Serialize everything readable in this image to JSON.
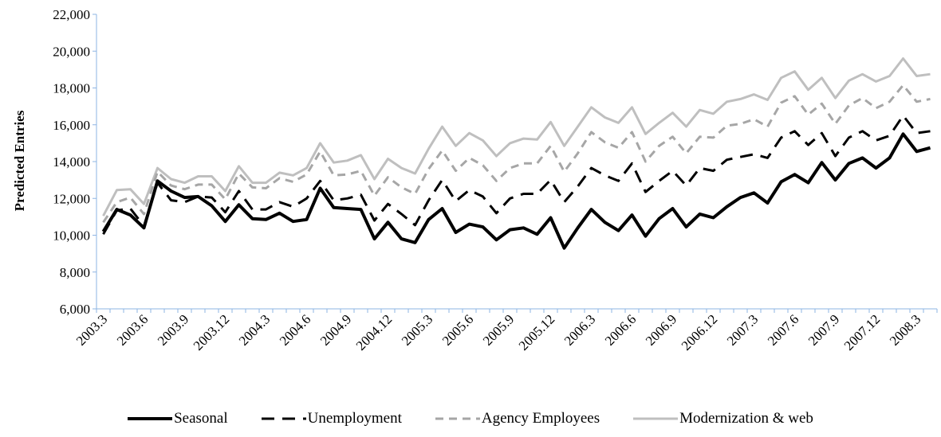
{
  "chart_data": {
    "type": "line",
    "title": "",
    "xlabel": "",
    "ylabel": "Predicted Entries",
    "ylim": [
      6000,
      22000
    ],
    "yticks": [
      6000,
      8000,
      10000,
      12000,
      14000,
      16000,
      18000,
      20000,
      22000
    ],
    "ytick_labels": [
      "6,000",
      "8,000",
      "10,000",
      "12,000",
      "14,000",
      "16,000",
      "18,000",
      "20,000",
      "22,000"
    ],
    "x": [
      "2003.3",
      "2003.4",
      "2003.5",
      "2003.6",
      "2003.7",
      "2003.8",
      "2003.9",
      "2003.10",
      "2003.11",
      "2003.12",
      "2004.1",
      "2004.2",
      "2004.3",
      "2004.4",
      "2004.5",
      "2004.6",
      "2004.7",
      "2004.8",
      "2004.9",
      "2004.10",
      "2004.11",
      "2004.12",
      "2005.1",
      "2005.2",
      "2005.3",
      "2005.4",
      "2005.5",
      "2005.6",
      "2005.7",
      "2005.8",
      "2005.9",
      "2005.10",
      "2005.11",
      "2005.12",
      "2006.1",
      "2006.2",
      "2006.3",
      "2006.4",
      "2006.5",
      "2006.6",
      "2006.7",
      "2006.8",
      "2006.9",
      "2006.10",
      "2006.11",
      "2006.12",
      "2007.1",
      "2007.2",
      "2007.3",
      "2007.4",
      "2007.5",
      "2007.6",
      "2007.7",
      "2007.8",
      "2007.9",
      "2007.10",
      "2007.11",
      "2007.12",
      "2008.1",
      "2008.2",
      "2008.3",
      "2008.4"
    ],
    "xtick_labels": [
      "2003.3",
      "2003.6",
      "2003.9",
      "2003.12",
      "2004.3",
      "2004.6",
      "2004.9",
      "2004.12",
      "2005.3",
      "2005.6",
      "2005.9",
      "2005.12",
      "2006.3",
      "2006.6",
      "2006.9",
      "2006.12",
      "2007.3",
      "2007.6",
      "2007.9",
      "2007.12",
      "2008.3"
    ],
    "grid": false,
    "legend_position": "bottom",
    "series": [
      {
        "name": "Seasonal",
        "color": "#000000",
        "dash": "solid",
        "width": 4,
        "values": [
          10200,
          11400,
          11100,
          10400,
          12950,
          12400,
          12050,
          12100,
          11600,
          10750,
          11650,
          10900,
          10850,
          11200,
          10750,
          10850,
          12550,
          11500,
          11450,
          11400,
          9800,
          10700,
          9800,
          9600,
          10850,
          11450,
          10150,
          10600,
          10450,
          9750,
          10300,
          10400,
          10050,
          10950,
          9300,
          10400,
          11400,
          10700,
          10250,
          11100,
          9950,
          10900,
          11450,
          10450,
          11150,
          10950,
          11550,
          12050,
          12300,
          11750,
          12900,
          13300,
          12850,
          13950,
          13000,
          13900,
          14200,
          13650,
          14200,
          15500,
          14550,
          14750
        ]
      },
      {
        "name": "Unemployment",
        "color": "#000000",
        "dash": "long",
        "width": 3,
        "values": [
          10050,
          11350,
          11450,
          10500,
          12850,
          11900,
          11800,
          12100,
          12050,
          11250,
          12400,
          11400,
          11400,
          11800,
          11550,
          12000,
          12950,
          11900,
          12000,
          12200,
          10800,
          11700,
          11150,
          10550,
          11900,
          13000,
          11850,
          12450,
          12100,
          11200,
          12000,
          12250,
          12250,
          13000,
          11800,
          12650,
          13650,
          13250,
          12950,
          13900,
          12350,
          12950,
          13500,
          12700,
          13650,
          13500,
          14100,
          14250,
          14400,
          14200,
          15300,
          15650,
          14900,
          15550,
          14300,
          15300,
          15650,
          15150,
          15400,
          16500,
          15550,
          15650
        ]
      },
      {
        "name": "Agency Employees",
        "color": "#a6a6a6",
        "dash": "medium",
        "width": 3,
        "values": [
          10700,
          11800,
          12050,
          11150,
          13450,
          12700,
          12500,
          12750,
          12750,
          11950,
          13350,
          12600,
          12550,
          13100,
          12900,
          13300,
          14550,
          13250,
          13300,
          13500,
          12150,
          13150,
          12600,
          12250,
          13600,
          14600,
          13500,
          14200,
          13800,
          12950,
          13650,
          13900,
          13900,
          14850,
          13450,
          14450,
          15600,
          15050,
          14750,
          15600,
          14000,
          14850,
          15350,
          14450,
          15350,
          15300,
          15950,
          16050,
          16300,
          15900,
          17200,
          17550,
          16550,
          17150,
          16050,
          17050,
          17450,
          16900,
          17250,
          18150,
          17250,
          17400
        ]
      },
      {
        "name": "Modernization & web",
        "color": "#bfbfbf",
        "dash": "solid",
        "width": 3,
        "values": [
          11050,
          12450,
          12500,
          11700,
          13650,
          13050,
          12850,
          13200,
          13200,
          12400,
          13750,
          12850,
          12850,
          13400,
          13250,
          13650,
          15000,
          13950,
          14050,
          14350,
          13050,
          14150,
          13650,
          13350,
          14700,
          15900,
          14850,
          15550,
          15150,
          14300,
          15000,
          15250,
          15200,
          16150,
          14850,
          15900,
          16950,
          16400,
          16100,
          16950,
          15500,
          16100,
          16650,
          15900,
          16800,
          16600,
          17250,
          17400,
          17650,
          17350,
          18550,
          18900,
          17900,
          18550,
          17450,
          18400,
          18750,
          18350,
          18650,
          19600,
          18650,
          18750
        ]
      }
    ]
  }
}
